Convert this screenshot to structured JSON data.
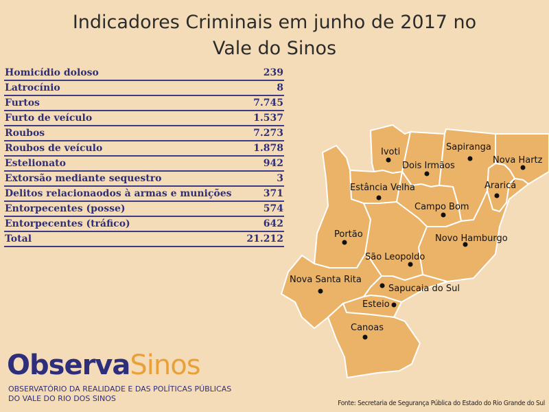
{
  "title_line1": "Indicadores Criminais em junho de 2017 no",
  "title_line2": "Vale do Sinos",
  "table": [
    {
      "label": "Homicídio doloso",
      "value": "239"
    },
    {
      "label": "Latrocínio",
      "value": "8"
    },
    {
      "label": "Furtos",
      "value": "7.745"
    },
    {
      "label": "Furto de veículo",
      "value": "1.537"
    },
    {
      "label": "Roubos",
      "value": "7.273"
    },
    {
      "label": "Roubos de veículo",
      "value": "1.878"
    },
    {
      "label": "Estelionato",
      "value": "942"
    },
    {
      "label": "Extorsão mediante sequestro",
      "value": "3"
    },
    {
      "label": "Delitos relacionaodos à armas e munições",
      "value": "371"
    },
    {
      "label": "Entorpecentes (posse)",
      "value": "574"
    },
    {
      "label": "Entorpecentes (tráfico)",
      "value": "642"
    },
    {
      "label": "Total",
      "value": "21.212"
    }
  ],
  "map": {
    "ivoti": "Ivoti",
    "dois_irmaos": "Dois Irmãos",
    "sapiranga": "Sapiranga",
    "nova_hartz": "Nova Hartz",
    "ararica": "Araricá",
    "estancia_velha": "Estância Velha",
    "campo_bom": "Campo Bom",
    "portao": "Portão",
    "novo_hamburgo": "Novo Hamburgo",
    "sao_leopoldo": "São Leopoldo",
    "nova_santa_rita": "Nova Santa Rita",
    "sapucaia": "Sapucaia do Sul",
    "esteio": "Esteio",
    "canoas": "Canoas"
  },
  "logo": {
    "part1": "Observa",
    "part2": "Sinos"
  },
  "logo_subtitle_line1": "OBSERVATÓRIO DA REALIDADE E DAS POLÍTICAS PÚBLICAS",
  "logo_subtitle_line2": "DO VALE DO RIO DOS SINOS",
  "source": "Fonte: Secretaria de Segurança Pública do Estado do Rio Grande do Sul",
  "colors": {
    "background": "#f5dcb8",
    "map_fill": "#ebb367",
    "text_blue": "#2e2e7a",
    "logo_orange": "#e9a038"
  }
}
